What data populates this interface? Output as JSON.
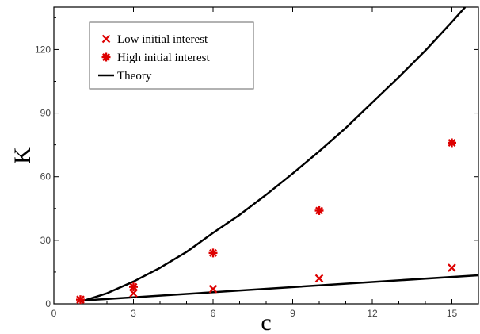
{
  "chart_data": {
    "type": "scatter",
    "title": "",
    "xlabel": "c",
    "ylabel": "K",
    "xlim": [
      0,
      16
    ],
    "ylim": [
      0,
      140
    ],
    "xticks": [
      0,
      3,
      6,
      9,
      12,
      15
    ],
    "yticks": [
      0,
      30,
      60,
      90,
      120
    ],
    "grid": false,
    "legend_position": "top-left",
    "series": [
      {
        "name": "Low initial interest",
        "marker": "x",
        "color": "#dd0000",
        "x": [
          1,
          3,
          6,
          10,
          15
        ],
        "y": [
          2,
          5,
          7,
          12,
          17
        ]
      },
      {
        "name": "High initial interest",
        "marker": "star",
        "color": "#dd0000",
        "x": [
          1,
          3,
          6,
          10,
          15
        ],
        "y": [
          2,
          8,
          24,
          44,
          76
        ]
      },
      {
        "name": "Theory",
        "type": "line",
        "color": "#000000",
        "curves": [
          {
            "x": [
              1,
              2,
              3,
              4,
              5,
              6,
              7,
              8,
              9,
              10,
              11,
              12,
              13,
              14,
              15,
              15.5
            ],
            "y": [
              1,
              5,
              10.5,
              17,
              24.5,
              33.5,
              42,
              51.5,
              61.5,
              72,
              83,
              95,
              107,
              119.5,
              133,
              140
            ]
          },
          {
            "x": [
              1,
              16
            ],
            "y": [
              1.5,
              13.5
            ]
          }
        ]
      }
    ]
  }
}
